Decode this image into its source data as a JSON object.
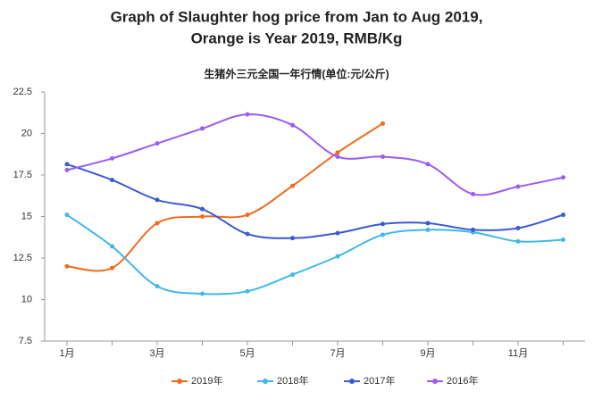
{
  "chart_data": {
    "type": "line",
    "title": "Graph of Slaughter hog price from Jan to Aug 2019,",
    "title_line2": "Orange is Year 2019, RMB/Kg",
    "subtitle": "生猪外三元全国一年行情(单位:元/公斤)",
    "categories": [
      "1月",
      null,
      "3月",
      null,
      "5月",
      null,
      "7月",
      null,
      "9月",
      null,
      "11月",
      null
    ],
    "series": [
      {
        "name": "2019年",
        "color": "#f26b1d",
        "values": [
          12.0,
          11.9,
          14.6,
          15.0,
          15.1,
          16.85,
          18.85,
          20.6,
          null,
          null,
          null,
          null
        ]
      },
      {
        "name": "2018年",
        "color": "#40b8e8",
        "values": [
          15.1,
          13.2,
          10.8,
          10.35,
          10.5,
          11.5,
          12.6,
          13.9,
          14.2,
          14.05,
          13.5,
          13.6
        ]
      },
      {
        "name": "2017年",
        "color": "#3b5bd0",
        "values": [
          18.15,
          17.2,
          16.0,
          15.45,
          13.95,
          13.7,
          14.0,
          14.55,
          14.6,
          14.2,
          14.3,
          15.1
        ]
      },
      {
        "name": "2016年",
        "color": "#9b5cf0",
        "values": [
          17.8,
          18.5,
          19.4,
          20.3,
          21.15,
          20.5,
          18.6,
          18.6,
          18.15,
          16.35,
          16.8,
          17.35
        ]
      }
    ],
    "ylim": [
      7.5,
      22.5
    ],
    "yticks": [
      7.5,
      10,
      12.5,
      15,
      17.5,
      20,
      22.5
    ],
    "grid": false,
    "legend": "bottom"
  }
}
